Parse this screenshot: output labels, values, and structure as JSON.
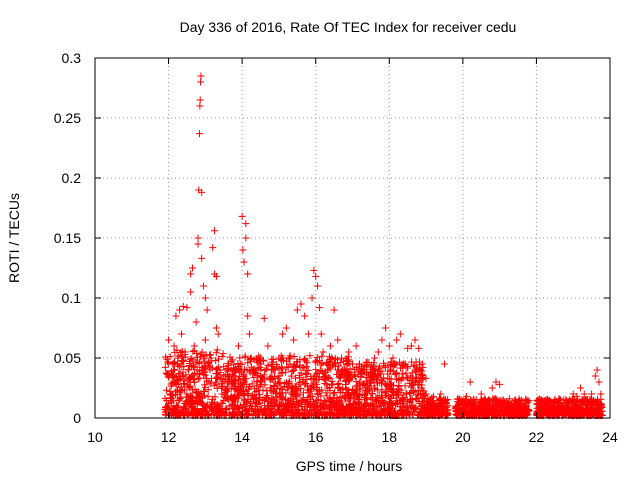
{
  "chart_data": {
    "type": "scatter",
    "title": "Day 336 of 2016, Rate Of TEC Index for receiver cedu",
    "xlabel": "GPS time / hours",
    "ylabel": "ROTI / TECUs",
    "xlim": [
      10,
      24
    ],
    "ylim": [
      0,
      0.3
    ],
    "xticks": [
      "10",
      "12",
      "14",
      "16",
      "18",
      "20",
      "22",
      "24"
    ],
    "yticks": [
      "0",
      "0.05",
      "0.1",
      "0.15",
      "0.2",
      "0.25",
      "0.3"
    ],
    "grid": true,
    "marker": "plus",
    "color": "#ff0000",
    "series": [
      {
        "values_description_omitted": true,
        "points": [
          [
            12.0,
            0.012
          ],
          [
            12.0,
            0.065
          ],
          [
            12.05,
            0.02
          ],
          [
            12.1,
            0.045
          ],
          [
            12.1,
            0.008
          ],
          [
            12.15,
            0.06
          ],
          [
            12.2,
            0.03
          ],
          [
            12.2,
            0.085
          ],
          [
            12.25,
            0.05
          ],
          [
            12.3,
            0.09
          ],
          [
            12.3,
            0.015
          ],
          [
            12.35,
            0.07
          ],
          [
            12.4,
            0.093
          ],
          [
            12.4,
            0.035
          ],
          [
            12.45,
            0.055
          ],
          [
            12.5,
            0.092
          ],
          [
            12.5,
            0.02
          ],
          [
            12.55,
            0.04
          ],
          [
            12.6,
            0.105
          ],
          [
            12.6,
            0.12
          ],
          [
            12.65,
            0.125
          ],
          [
            12.7,
            0.06
          ],
          [
            12.7,
            0.03
          ],
          [
            12.75,
            0.08
          ],
          [
            12.8,
            0.15
          ],
          [
            12.8,
            0.145
          ],
          [
            12.82,
            0.19
          ],
          [
            12.84,
            0.237
          ],
          [
            12.85,
            0.26
          ],
          [
            12.86,
            0.265
          ],
          [
            12.87,
            0.28
          ],
          [
            12.88,
            0.285
          ],
          [
            12.9,
            0.188
          ],
          [
            12.9,
            0.133
          ],
          [
            12.95,
            0.11
          ],
          [
            12.95,
            0.04
          ],
          [
            13.0,
            0.1
          ],
          [
            13.0,
            0.065
          ],
          [
            13.05,
            0.09
          ],
          [
            13.1,
            0.03
          ],
          [
            13.15,
            0.05
          ],
          [
            13.2,
            0.142
          ],
          [
            13.25,
            0.156
          ],
          [
            13.25,
            0.12
          ],
          [
            13.3,
            0.118
          ],
          [
            13.3,
            0.075
          ],
          [
            13.35,
            0.07
          ],
          [
            13.4,
            0.04
          ],
          [
            13.45,
            0.02
          ],
          [
            13.5,
            0.035
          ],
          [
            13.6,
            0.025
          ],
          [
            13.7,
            0.04
          ],
          [
            13.8,
            0.03
          ],
          [
            13.9,
            0.06
          ],
          [
            13.95,
            0.045
          ],
          [
            14.0,
            0.168
          ],
          [
            14.02,
            0.14
          ],
          [
            14.05,
            0.13
          ],
          [
            14.1,
            0.162
          ],
          [
            14.1,
            0.15
          ],
          [
            14.15,
            0.12
          ],
          [
            14.15,
            0.085
          ],
          [
            14.2,
            0.07
          ],
          [
            14.25,
            0.05
          ],
          [
            14.3,
            0.04
          ],
          [
            14.4,
            0.03
          ],
          [
            14.5,
            0.05
          ],
          [
            14.6,
            0.083
          ],
          [
            14.7,
            0.06
          ],
          [
            14.8,
            0.04
          ],
          [
            14.9,
            0.03
          ],
          [
            15.0,
            0.05
          ],
          [
            15.1,
            0.07
          ],
          [
            15.2,
            0.075
          ],
          [
            15.3,
            0.045
          ],
          [
            15.4,
            0.065
          ],
          [
            15.5,
            0.09
          ],
          [
            15.6,
            0.095
          ],
          [
            15.7,
            0.085
          ],
          [
            15.8,
            0.07
          ],
          [
            15.9,
            0.1
          ],
          [
            15.95,
            0.123
          ],
          [
            16.0,
            0.118
          ],
          [
            16.05,
            0.11
          ],
          [
            16.1,
            0.092
          ],
          [
            16.15,
            0.07
          ],
          [
            16.2,
            0.055
          ],
          [
            16.3,
            0.045
          ],
          [
            16.4,
            0.06
          ],
          [
            16.5,
            0.09
          ],
          [
            16.6,
            0.065
          ],
          [
            16.7,
            0.05
          ],
          [
            16.8,
            0.04
          ],
          [
            16.9,
            0.055
          ],
          [
            17.0,
            0.045
          ],
          [
            17.1,
            0.06
          ],
          [
            17.2,
            0.03
          ],
          [
            17.3,
            0.04
          ],
          [
            17.4,
            0.025
          ],
          [
            17.5,
            0.035
          ],
          [
            17.6,
            0.05
          ],
          [
            17.7,
            0.055
          ],
          [
            17.8,
            0.065
          ],
          [
            17.9,
            0.075
          ],
          [
            18.0,
            0.06
          ],
          [
            18.1,
            0.05
          ],
          [
            18.2,
            0.065
          ],
          [
            18.3,
            0.07
          ],
          [
            18.4,
            0.045
          ],
          [
            18.5,
            0.058
          ],
          [
            18.6,
            0.06
          ],
          [
            18.7,
            0.065
          ],
          [
            18.8,
            0.058
          ],
          [
            18.9,
            0.045
          ],
          [
            19.0,
            0.02
          ],
          [
            19.1,
            0.015
          ],
          [
            19.2,
            0.018
          ],
          [
            19.3,
            0.012
          ],
          [
            19.4,
            0.02
          ],
          [
            19.5,
            0.045
          ],
          [
            19.8,
            0.008
          ],
          [
            20.0,
            0.012
          ],
          [
            20.1,
            0.018
          ],
          [
            20.2,
            0.03
          ],
          [
            20.3,
            0.015
          ],
          [
            20.5,
            0.02
          ],
          [
            20.6,
            0.01
          ],
          [
            20.7,
            0.015
          ],
          [
            20.8,
            0.025
          ],
          [
            20.9,
            0.03
          ],
          [
            21.0,
            0.028
          ],
          [
            21.1,
            0.015
          ],
          [
            21.2,
            0.012
          ],
          [
            21.4,
            0.012
          ],
          [
            21.6,
            0.01
          ],
          [
            21.7,
            0.008
          ],
          [
            22.1,
            0.01
          ],
          [
            22.2,
            0.012
          ],
          [
            22.3,
            0.015
          ],
          [
            22.4,
            0.008
          ],
          [
            22.6,
            0.01
          ],
          [
            22.8,
            0.015
          ],
          [
            23.0,
            0.02
          ],
          [
            23.1,
            0.018
          ],
          [
            23.2,
            0.025
          ],
          [
            23.3,
            0.02
          ],
          [
            23.5,
            0.02
          ],
          [
            23.6,
            0.035
          ],
          [
            23.65,
            0.04
          ],
          [
            23.7,
            0.03
          ],
          [
            23.75,
            0.02
          ]
        ]
      }
    ],
    "density_bands": [
      {
        "x_from": 11.9,
        "x_to": 13.5,
        "y_max": 0.055
      },
      {
        "x_from": 13.5,
        "x_to": 17.0,
        "y_max": 0.05
      },
      {
        "x_from": 17.0,
        "x_to": 19.0,
        "y_max": 0.045
      },
      {
        "x_from": 19.0,
        "x_to": 19.6,
        "y_max": 0.015
      },
      {
        "x_from": 19.8,
        "x_to": 21.8,
        "y_max": 0.014
      },
      {
        "x_from": 22.0,
        "x_to": 23.8,
        "y_max": 0.014
      }
    ]
  }
}
